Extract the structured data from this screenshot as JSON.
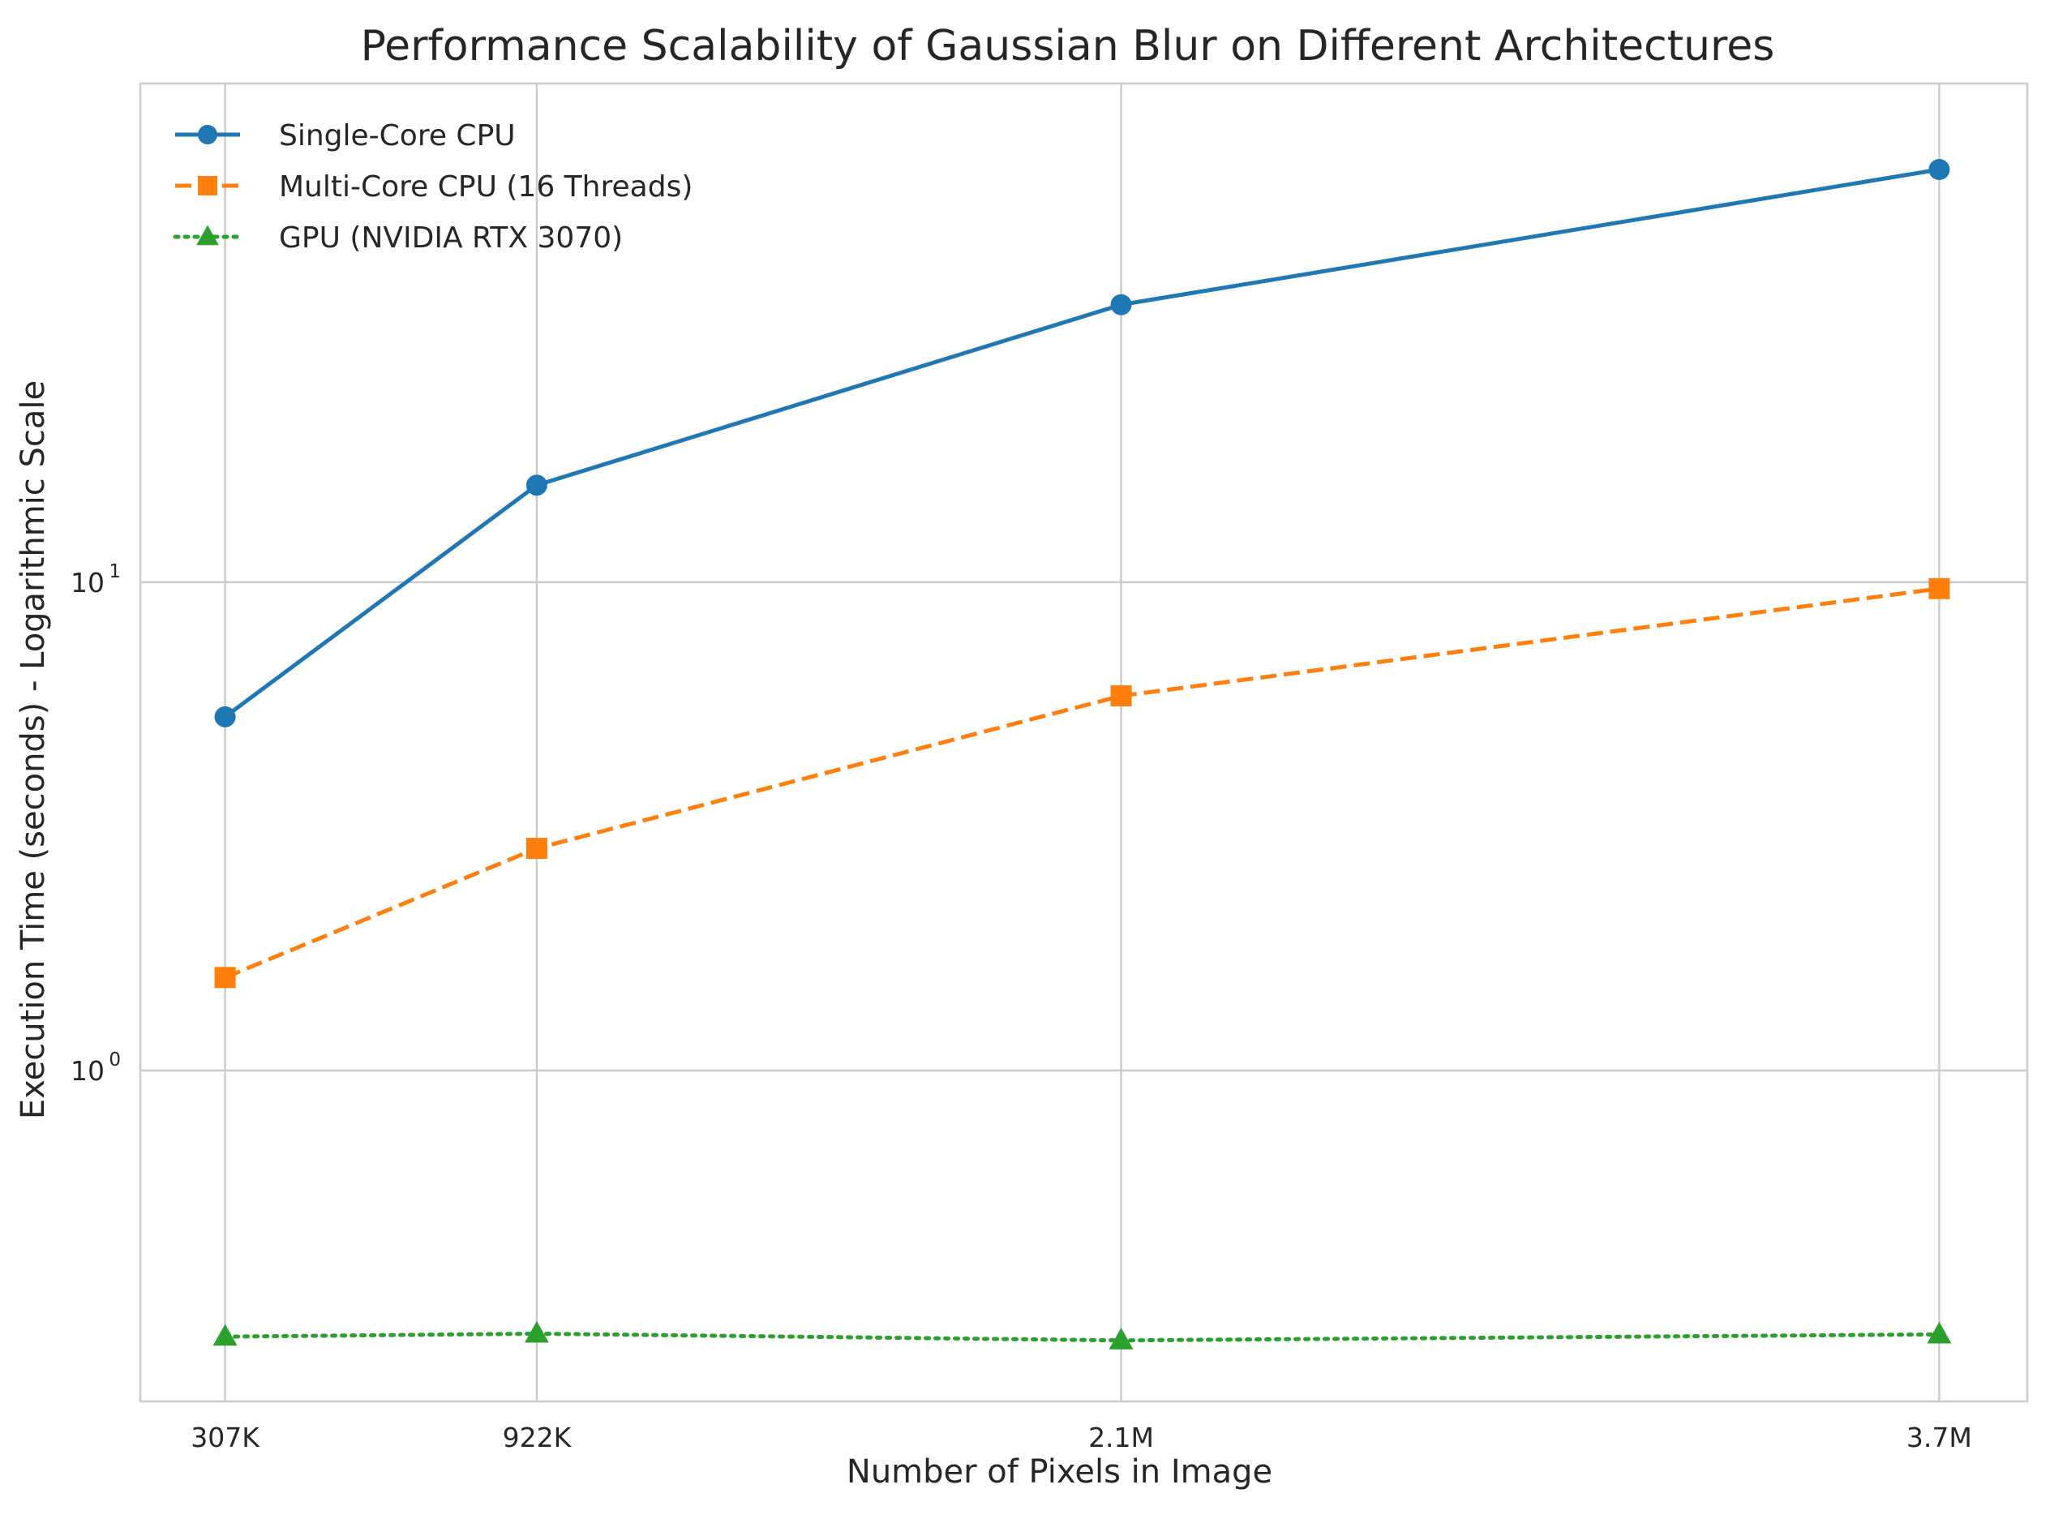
{
  "chart_data": {
    "type": "line",
    "title": "Performance Scalability of Gaussian Blur on Different Architectures",
    "xlabel": "Number of Pixels in Image",
    "ylabel": "Execution Time (seconds) - Logarithmic Scale",
    "x": [
      307200,
      921600,
      2073600,
      3686400
    ],
    "xtick_labels": [
      "307K",
      "922K",
      "2.1M",
      "3.7M"
    ],
    "xlim": [
      140000,
      3860000
    ],
    "yscale": "log",
    "ylim": [
      0.21,
      105
    ],
    "ytick_labels": [
      {
        "base": "10",
        "exp": "1",
        "value": 10
      },
      {
        "base": "10",
        "exp": "0",
        "value": 1
      }
    ],
    "grid": true,
    "legend_position": "top-left",
    "series": [
      {
        "name": "Single-Core CPU",
        "color": "#1f77b4",
        "linestyle": "solid",
        "marker": "circle",
        "values": [
          5.3,
          15.8,
          37.0,
          70.0
        ]
      },
      {
        "name": "Multi-Core CPU (16 Threads)",
        "color": "#ff7f0e",
        "linestyle": "dashed",
        "marker": "square",
        "values": [
          1.55,
          2.85,
          5.85,
          9.7
        ]
      },
      {
        "name": "GPU (NVIDIA RTX 3070)",
        "color": "#2ca02c",
        "linestyle": "dotted",
        "marker": "triangle",
        "values": [
          0.285,
          0.289,
          0.28,
          0.288
        ]
      }
    ]
  }
}
